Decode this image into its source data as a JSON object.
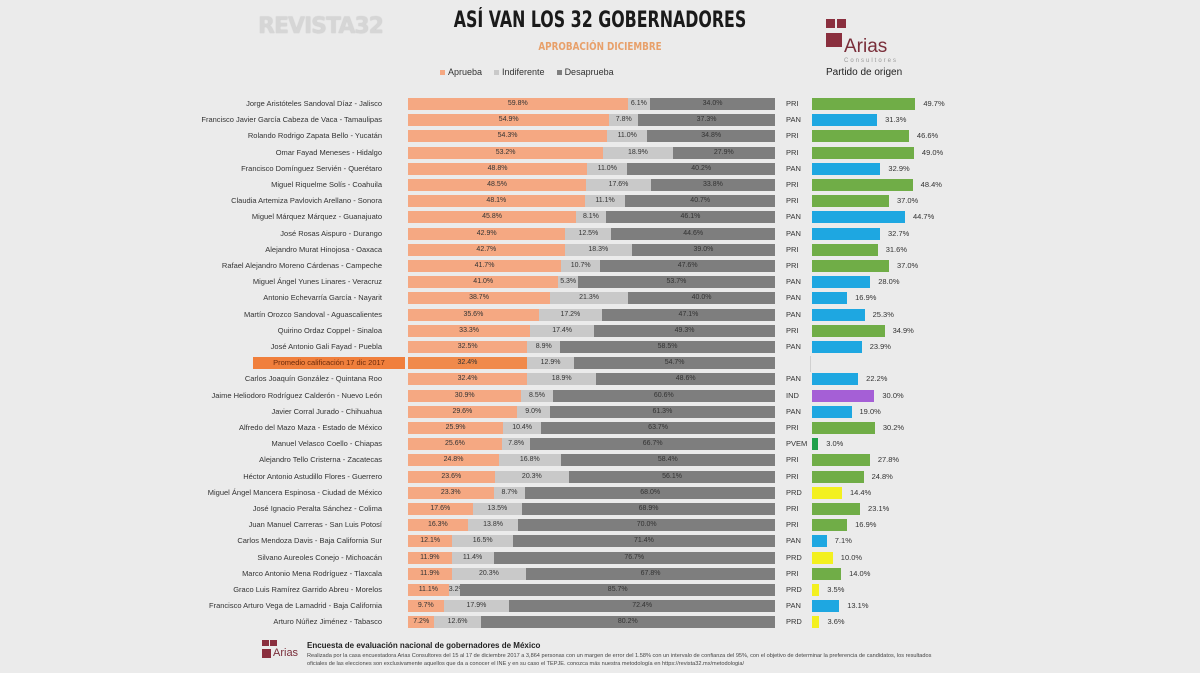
{
  "header": {
    "brand": "REVISTA32",
    "title": "ASÍ VAN LOS 32 GOBERNADORES",
    "subtitle": "APROBACIÓN DICIEMBRE",
    "logo_text": "Arias",
    "logo_subtext": "Consultores",
    "party_header": "Partido de origen"
  },
  "colors": {
    "aprueba": "#f5a882",
    "aprueba_avg": "#f08a4b",
    "indiferente": "#c9c9c9",
    "desaprueba": "#7e7e7e",
    "avg_label_bg": "#f07f3c",
    "PRI": "#70ad47",
    "PAN": "#1ea7e1",
    "IND": "#a55fd6",
    "PVEM": "#1fa04a",
    "PRD": "#f3f01f"
  },
  "chart_data": {
    "type": "bar",
    "stacked": true,
    "orientation": "horizontal",
    "legend": [
      "Aprueba",
      "Indiferente",
      "Desaprueba"
    ],
    "legend_position": "top",
    "rows": [
      {
        "name": "Jorge Aristóteles Sandoval Díaz - Jalisco",
        "aprueba": "59.8%",
        "indiferente": "6.1%",
        "desaprueba": "34.0%",
        "party": "PRI",
        "party_pct": "49.7%"
      },
      {
        "name": "Francisco Javier García Cabeza de Vaca - Tamaulipas",
        "aprueba": "54.9%",
        "indiferente": "7.8%",
        "desaprueba": "37.3%",
        "party": "PAN",
        "party_pct": "31.3%"
      },
      {
        "name": "Rolando Rodrigo Zapata Bello - Yucatán",
        "aprueba": "54.3%",
        "indiferente": "11.0%",
        "desaprueba": "34.8%",
        "party": "PRI",
        "party_pct": "46.6%"
      },
      {
        "name": "Omar Fayad Meneses - Hidalgo",
        "aprueba": "53.2%",
        "indiferente": "18.9%",
        "desaprueba": "27.9%",
        "party": "PRI",
        "party_pct": "49.0%"
      },
      {
        "name": "Francisco Domínguez Servién - Querétaro",
        "aprueba": "48.8%",
        "indiferente": "11.0%",
        "desaprueba": "40.2%",
        "party": "PAN",
        "party_pct": "32.9%"
      },
      {
        "name": "Miguel Riquelme Solís - Coahuila",
        "aprueba": "48.5%",
        "indiferente": "17.6%",
        "desaprueba": "33.8%",
        "party": "PRI",
        "party_pct": "48.4%"
      },
      {
        "name": "Claudia Artemiza Pavlovich Arellano - Sonora",
        "aprueba": "48.1%",
        "indiferente": "11.1%",
        "desaprueba": "40.7%",
        "party": "PRI",
        "party_pct": "37.0%"
      },
      {
        "name": "Miguel Márquez Márquez - Guanajuato",
        "aprueba": "45.8%",
        "indiferente": "8.1%",
        "desaprueba": "46.1%",
        "party": "PAN",
        "party_pct": "44.7%"
      },
      {
        "name": "José Rosas Aispuro - Durango",
        "aprueba": "42.9%",
        "indiferente": "12.5%",
        "desaprueba": "44.6%",
        "party": "PAN",
        "party_pct": "32.7%"
      },
      {
        "name": "Alejandro Murat Hinojosa - Oaxaca",
        "aprueba": "42.7%",
        "indiferente": "18.3%",
        "desaprueba": "39.0%",
        "party": "PRI",
        "party_pct": "31.6%"
      },
      {
        "name": "Rafael Alejandro Moreno Cárdenas - Campeche",
        "aprueba": "41.7%",
        "indiferente": "10.7%",
        "desaprueba": "47.6%",
        "party": "PRI",
        "party_pct": "37.0%"
      },
      {
        "name": "Miguel Ángel Yunes Linares - Veracruz",
        "aprueba": "41.0%",
        "indiferente": "5.3%",
        "desaprueba": "53.7%",
        "party": "PAN",
        "party_pct": "28.0%"
      },
      {
        "name": "Antonio Echevarría García - Nayarit",
        "aprueba": "38.7%",
        "indiferente": "21.3%",
        "desaprueba": "40.0%",
        "party": "PAN",
        "party_pct": "16.9%"
      },
      {
        "name": "Martín Orozco Sandoval - Aguascalientes",
        "aprueba": "35.6%",
        "indiferente": "17.2%",
        "desaprueba": "47.1%",
        "party": "PAN",
        "party_pct": "25.3%"
      },
      {
        "name": "Quirino Ordaz Coppel - Sinaloa",
        "aprueba": "33.3%",
        "indiferente": "17.4%",
        "desaprueba": "49.3%",
        "party": "PRI",
        "party_pct": "34.9%"
      },
      {
        "name": "José Antonio Gali Fayad - Puebla",
        "aprueba": "32.5%",
        "indiferente": "8.9%",
        "desaprueba": "58.5%",
        "party": "PAN",
        "party_pct": "23.9%"
      },
      {
        "name": "Promedio calificación 17 dic 2017",
        "aprueba": "32.4%",
        "indiferente": "12.9%",
        "desaprueba": "54.7%",
        "average": true
      },
      {
        "name": "Carlos Joaquín González - Quintana Roo",
        "aprueba": "32.4%",
        "indiferente": "18.9%",
        "desaprueba": "48.6%",
        "party": "PAN",
        "party_pct": "22.2%"
      },
      {
        "name": "Jaime Heliodoro Rodríguez Calderón - Nuevo León",
        "aprueba": "30.9%",
        "indiferente": "8.5%",
        "desaprueba": "60.6%",
        "party": "IND",
        "party_pct": "30.0%"
      },
      {
        "name": "Javier Corral Jurado - Chihuahua",
        "aprueba": "29.6%",
        "indiferente": "9.0%",
        "desaprueba": "61.3%",
        "party": "PAN",
        "party_pct": "19.0%"
      },
      {
        "name": "Alfredo del Mazo Maza - Estado de México",
        "aprueba": "25.9%",
        "indiferente": "10.4%",
        "desaprueba": "63.7%",
        "party": "PRI",
        "party_pct": "30.2%"
      },
      {
        "name": "Manuel Velasco Coello - Chiapas",
        "aprueba": "25.6%",
        "indiferente": "7.8%",
        "desaprueba": "66.7%",
        "party": "PVEM",
        "party_pct": "3.0%"
      },
      {
        "name": "Alejandro Tello Cristerna - Zacatecas",
        "aprueba": "24.8%",
        "indiferente": "16.8%",
        "desaprueba": "58.4%",
        "party": "PRI",
        "party_pct": "27.8%"
      },
      {
        "name": "Héctor Antonio Astudillo Flores - Guerrero",
        "aprueba": "23.6%",
        "indiferente": "20.3%",
        "desaprueba": "56.1%",
        "party": "PRI",
        "party_pct": "24.8%"
      },
      {
        "name": "Miguel Ángel Mancera Espinosa - Ciudad de México",
        "aprueba": "23.3%",
        "indiferente": "8.7%",
        "desaprueba": "68.0%",
        "party": "PRD",
        "party_pct": "14.4%"
      },
      {
        "name": "José Ignacio Peralta Sánchez - Colima",
        "aprueba": "17.6%",
        "indiferente": "13.5%",
        "desaprueba": "68.9%",
        "party": "PRI",
        "party_pct": "23.1%"
      },
      {
        "name": "Juan Manuel Carreras - San Luis Potosí",
        "aprueba": "16.3%",
        "indiferente": "13.8%",
        "desaprueba": "70.0%",
        "party": "PRI",
        "party_pct": "16.9%"
      },
      {
        "name": "Carlos Mendoza Davis - Baja California Sur",
        "aprueba": "12.1%",
        "indiferente": "16.5%",
        "desaprueba": "71.4%",
        "party": "PAN",
        "party_pct": "7.1%"
      },
      {
        "name": "Silvano Aureoles Conejo - Michoacán",
        "aprueba": "11.9%",
        "indiferente": "11.4%",
        "desaprueba": "76.7%",
        "party": "PRD",
        "party_pct": "10.0%"
      },
      {
        "name": "Marco Antonio Mena Rodríguez - Tlaxcala",
        "aprueba": "11.9%",
        "indiferente": "20.3%",
        "desaprueba": "67.8%",
        "party": "PRI",
        "party_pct": "14.0%"
      },
      {
        "name": "Graco Luis Ramírez Garrido Abreu - Morelos",
        "aprueba": "11.1%",
        "indiferente": "3.2%",
        "desaprueba": "85.7%",
        "party": "PRD",
        "party_pct": "3.5%"
      },
      {
        "name": "Francisco Arturo Vega de Lamadrid - Baja California",
        "aprueba": "9.7%",
        "indiferente": "17.9%",
        "desaprueba": "72.4%",
        "party": "PAN",
        "party_pct": "13.1%"
      },
      {
        "name": "Arturo Núñez Jiménez - Tabasco",
        "aprueba": "7.2%",
        "indiferente": "12.6%",
        "desaprueba": "80.2%",
        "party": "PRD",
        "party_pct": "3.6%"
      }
    ]
  },
  "footer": {
    "logo_text": "Arias",
    "title": "Encuesta de evaluación nacional de gobernadores de México",
    "text": "Realizada por la casa encuestadora Arias Consultores del 15 al 17 de diciembre 2017 a 3,864 personas con un margen de error del 1.58% con un intervalo de confianza del 95%, con el objetivo de determinar la preferencia de candidatos, los resultados oficiales de las elecciones son exclusivamente aquellos que da a conocer el INE y en su caso el TEPJE. conozca más nuestra metodología en https://revista32.mx/metodologia/"
  }
}
